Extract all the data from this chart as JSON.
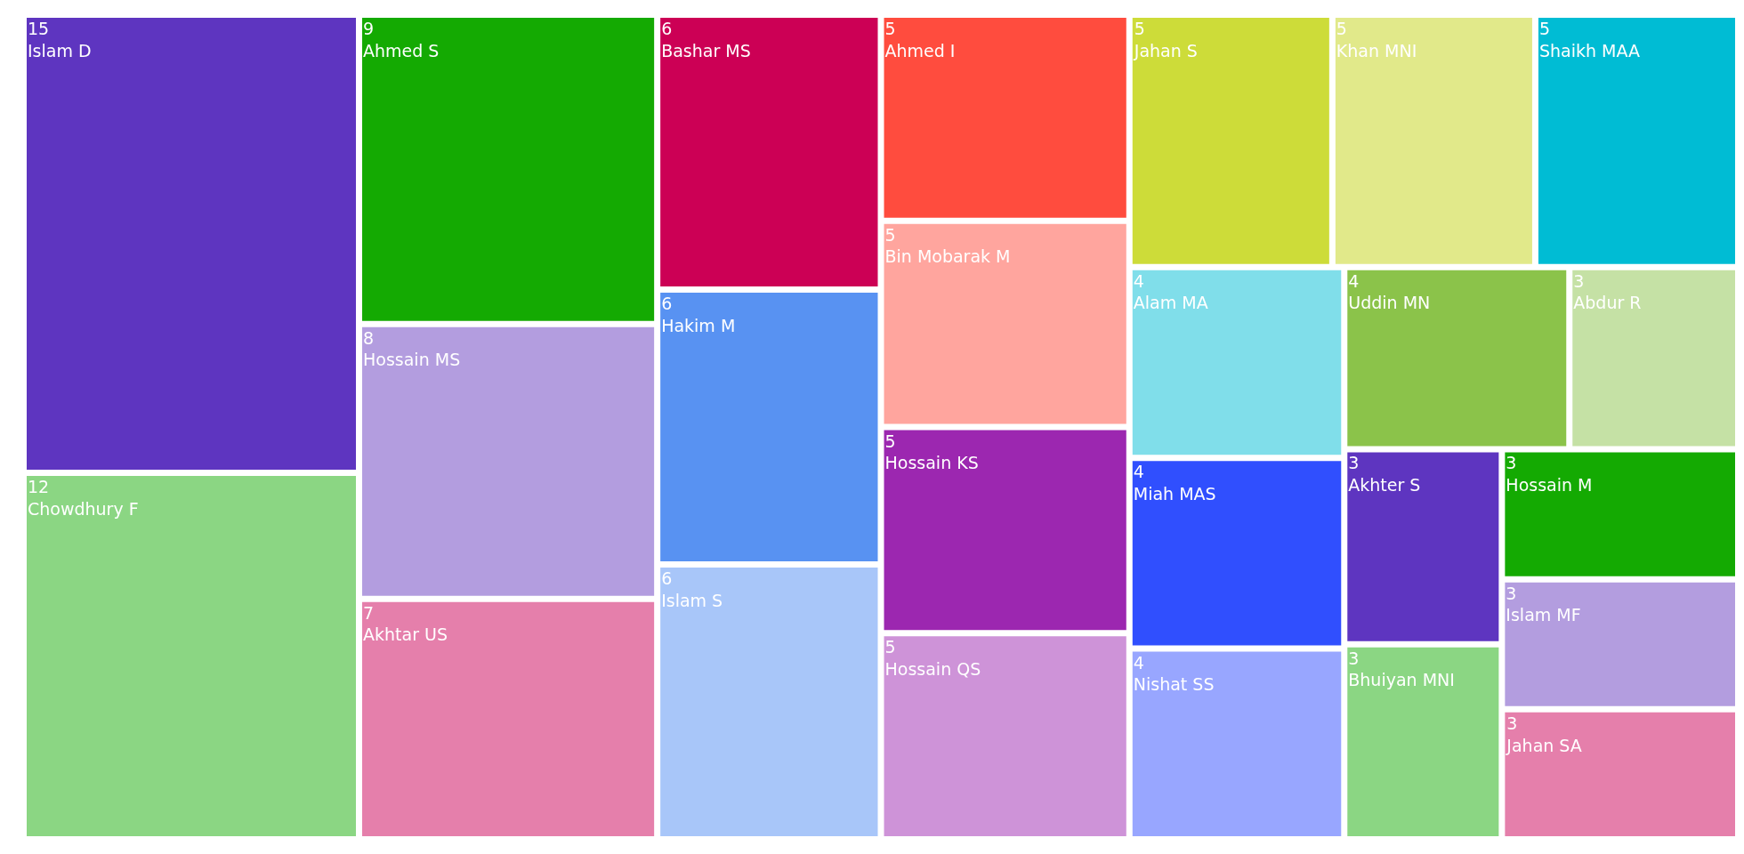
{
  "chart_data": {
    "type": "other",
    "data_labels": true,
    "categories": [
      "Islam D",
      "Chowdhury F",
      "Ahmed S",
      "Hossain MS",
      "Akhtar US",
      "Bashar MS",
      "Hakim M",
      "Islam S",
      "Ahmed I",
      "Bin Mobarak M",
      "Hossain KS",
      "Hossain QS",
      "Jahan S",
      "Khan MNI",
      "Shaikh MAA",
      "Alam MA",
      "Miah MAS",
      "Nishat SS",
      "Uddin MN",
      "Abdur R",
      "Akhter S",
      "Bhuiyan MNI",
      "Hossain M",
      "Islam MF",
      "Jahan SA"
    ],
    "values": [
      15,
      12,
      9,
      8,
      7,
      6,
      6,
      6,
      5,
      5,
      5,
      5,
      5,
      5,
      5,
      4,
      4,
      4,
      4,
      3,
      3,
      3,
      3,
      3,
      3
    ],
    "colors": [
      "#5e35c0",
      "#8bd683",
      "#14aa02",
      "#b39ddf",
      "#e57fab",
      "#cc0055",
      "#5892f2",
      "#a8c6f9",
      "#ff4c3e",
      "#ffa59e",
      "#9c27b0",
      "#ce93d8",
      "#cddc39",
      "#e1e98a",
      "#00bcd4",
      "#80deea",
      "#304ffe",
      "#98a6ff",
      "#8bc34a",
      "#c5e1a5",
      "#5e35c0",
      "#8bd683",
      "#14aa02",
      "#b39ddf",
      "#e57fab"
    ]
  }
}
